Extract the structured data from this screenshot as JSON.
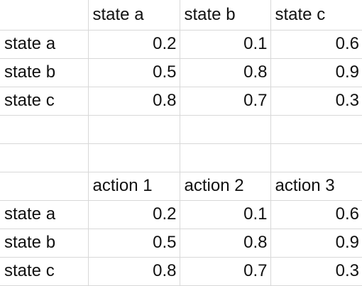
{
  "table1": {
    "headers": [
      "state a",
      "state b",
      "state c"
    ],
    "rows": [
      {
        "label": "state a",
        "values": [
          "0.2",
          "0.1",
          "0.6"
        ]
      },
      {
        "label": "state b",
        "values": [
          "0.5",
          "0.8",
          "0.9"
        ]
      },
      {
        "label": "state c",
        "values": [
          "0.8",
          "0.7",
          "0.3"
        ]
      }
    ]
  },
  "table2": {
    "headers": [
      "action 1",
      "action 2",
      "action 3"
    ],
    "rows": [
      {
        "label": "state a",
        "values": [
          "0.2",
          "0.1",
          "0.6"
        ]
      },
      {
        "label": "state b",
        "values": [
          "0.5",
          "0.8",
          "0.9"
        ]
      },
      {
        "label": "state c",
        "values": [
          "0.8",
          "0.7",
          "0.3"
        ]
      }
    ]
  }
}
